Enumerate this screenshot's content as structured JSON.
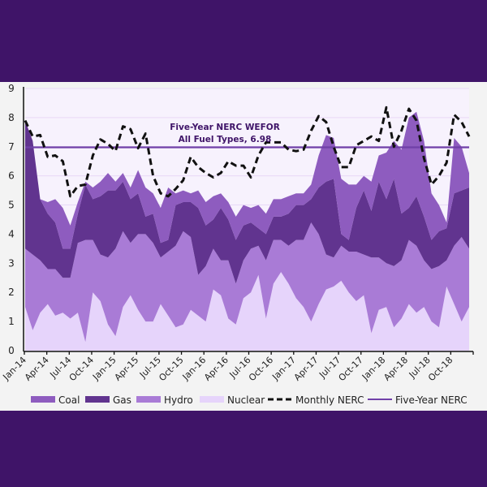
{
  "chart_data": {
    "type": "area",
    "stacked": true,
    "title": "",
    "xlabel": "",
    "ylabel": "",
    "ylim": [
      0,
      9
    ],
    "yticks": [
      "0",
      "1",
      "2",
      "3",
      "4",
      "5",
      "6",
      "7",
      "8",
      "9"
    ],
    "xtick_labels": [
      "Jan-14",
      "Apr-14",
      "Jul-14",
      "Oct-14",
      "Jan-15",
      "Apr-15",
      "Jul-15",
      "Oct-15",
      "Jan-16",
      "Apr-16",
      "Jul-16",
      "Oct-16",
      "Jan-17",
      "Apr-17",
      "Jul-17",
      "Oct-17",
      "Jan-18",
      "Apr-18",
      "Jul-18",
      "Oct-18"
    ],
    "grid": true,
    "legend_position": "bottom",
    "colors": {
      "coal": "#8e5cbf",
      "gas": "#61348f",
      "hydro": "#a97bd6",
      "nuclear": "#e6d4fb",
      "monthly_line": "#111111",
      "five_year_line": "#7040a8",
      "plot_bg": "#f7f2fd",
      "panel_bg": "#f3f3f3",
      "frame": "#3f1468"
    },
    "series": [
      {
        "name": "Nuclear",
        "values": [
          1.5,
          0.7,
          1.3,
          1.6,
          1.2,
          1.3,
          1.1,
          1.3,
          0.3,
          2.0,
          1.7,
          0.9,
          0.5,
          1.5,
          1.9,
          1.4,
          1.0,
          1.0,
          1.6,
          1.2,
          0.8,
          0.9,
          1.4,
          1.2,
          1.0,
          2.1,
          1.9,
          1.1,
          0.9,
          1.8,
          2.0,
          2.6,
          1.1,
          2.3,
          2.7,
          2.3,
          1.8,
          1.5,
          1.0,
          1.6,
          2.1,
          2.2,
          2.4,
          2.0,
          1.7,
          1.9,
          0.6,
          1.4,
          1.5,
          0.8,
          1.1,
          1.6,
          1.3,
          1.5,
          1.0,
          0.8,
          2.2,
          1.6,
          1.0,
          1.5
        ]
      },
      {
        "name": "Hydro",
        "values": [
          2.0,
          2.6,
          1.8,
          1.2,
          1.6,
          1.2,
          1.4,
          2.4,
          3.5,
          1.8,
          1.6,
          2.3,
          3.0,
          2.6,
          1.8,
          2.6,
          3.0,
          2.7,
          1.6,
          2.2,
          2.8,
          3.2,
          2.5,
          1.4,
          1.9,
          1.4,
          1.2,
          2.0,
          1.4,
          1.3,
          1.5,
          1.0,
          2.0,
          1.5,
          1.1,
          1.3,
          2.0,
          2.3,
          3.4,
          2.4,
          1.2,
          1.0,
          1.2,
          1.4,
          1.7,
          1.4,
          2.6,
          1.8,
          1.5,
          2.1,
          2.0,
          2.2,
          2.3,
          1.6,
          1.8,
          2.1,
          0.9,
          2.0,
          2.9,
          2.0
        ]
      },
      {
        "name": "Gas",
        "values": [
          4.4,
          3.9,
          2.1,
          1.9,
          1.6,
          1.0,
          1.0,
          1.0,
          1.9,
          1.4,
          2.0,
          2.3,
          2.0,
          1.7,
          1.5,
          1.4,
          0.6,
          1.0,
          0.5,
          0.4,
          1.4,
          1.0,
          1.2,
          2.3,
          1.4,
          1.0,
          1.8,
          1.4,
          1.5,
          1.2,
          0.9,
          0.6,
          0.9,
          0.8,
          0.8,
          1.1,
          1.2,
          1.2,
          0.8,
          1.6,
          2.5,
          2.7,
          0.4,
          0.4,
          1.5,
          2.2,
          1.6,
          2.6,
          2.2,
          3.0,
          1.6,
          1.1,
          1.7,
          1.5,
          1.0,
          1.2,
          1.1,
          1.8,
          1.6,
          2.1
        ]
      },
      {
        "name": "Coal",
        "values": [
          0.0,
          0.0,
          0.0,
          0.4,
          0.8,
          1.4,
          0.8,
          0.4,
          0.1,
          0.4,
          0.5,
          0.6,
          0.3,
          0.3,
          0.4,
          0.8,
          1.0,
          0.7,
          1.2,
          1.8,
          0.4,
          0.4,
          0.3,
          0.6,
          0.8,
          0.8,
          0.5,
          0.6,
          0.8,
          0.7,
          0.5,
          0.8,
          0.7,
          0.6,
          0.6,
          0.6,
          0.4,
          0.4,
          0.5,
          1.1,
          1.6,
          1.4,
          1.9,
          1.9,
          0.8,
          0.5,
          1.0,
          0.9,
          1.6,
          1.3,
          2.2,
          3.1,
          2.9,
          2.6,
          1.6,
          0.9,
          0.2,
          1.9,
          1.5,
          0.5
        ]
      }
    ],
    "lines": [
      {
        "name": "Monthly NERC",
        "style": "dashed",
        "values": [
          7.9,
          7.35,
          7.4,
          6.65,
          6.7,
          6.5,
          5.3,
          5.65,
          5.7,
          6.7,
          7.25,
          7.1,
          6.85,
          7.7,
          7.6,
          6.95,
          7.45,
          6.0,
          5.4,
          5.3,
          5.55,
          5.85,
          6.65,
          6.3,
          6.1,
          5.95,
          6.1,
          6.5,
          6.35,
          6.35,
          5.95,
          6.7,
          7.15,
          7.15,
          7.15,
          6.9,
          6.85,
          6.9,
          7.55,
          8.05,
          7.85,
          7.0,
          6.3,
          6.3,
          7.05,
          7.2,
          7.35,
          7.2,
          8.35,
          7.0,
          7.55,
          8.3,
          7.9,
          6.6,
          5.7,
          6.0,
          6.45,
          8.1,
          7.85,
          7.35
        ]
      },
      {
        "name": "Five-Year NERC",
        "style": "solid",
        "value": 6.98
      }
    ],
    "annotation": {
      "line1": "Five-Year NERC WEFOR",
      "line2": "All Fuel Types, 6.98"
    },
    "legend": [
      "Coal",
      "Gas",
      "Hydro",
      "Nuclear",
      "Monthly NERC",
      "Five-Year NERC"
    ]
  }
}
